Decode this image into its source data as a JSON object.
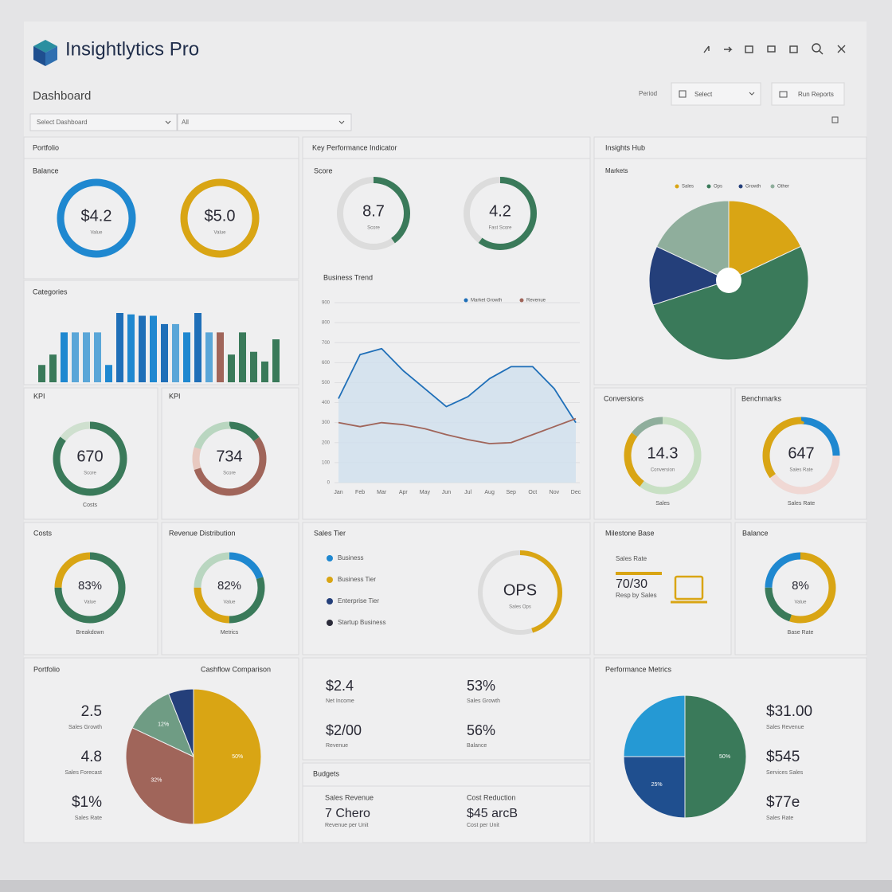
{
  "header": {
    "title": "Insightlytics Pro",
    "page": "Dashboard",
    "filter_label": "Period",
    "select": "Select",
    "button": "Run Reports",
    "dropdowns": [
      "Select Dashboard",
      "All"
    ]
  },
  "portfolio": {
    "title": "Portfolio",
    "subtitle": "Balance",
    "gauges": [
      {
        "value": "$4.2",
        "sub": "Value",
        "segments": [
          {
            "value": 100,
            "color": "#1f88d0"
          }
        ]
      },
      {
        "value": "$5.0",
        "sub": "Value",
        "segments": [
          {
            "value": 100,
            "color": "#d9a514"
          }
        ]
      }
    ]
  },
  "kpi": {
    "title": "Key Performance Indicator",
    "subtitle": "Score",
    "gauges": [
      {
        "value": "8.7",
        "sub": "Score",
        "segments": [
          {
            "value": 40,
            "color": "#3a7a5a"
          }
        ]
      },
      {
        "value": "4.2",
        "sub": "Fast Score",
        "segments": [
          {
            "value": 60,
            "color": "#3a7a5a"
          }
        ]
      }
    ]
  },
  "trend": {
    "title": "Business Trend",
    "ylim": [
      0,
      900
    ],
    "yticks": [
      0,
      100,
      200,
      300,
      400,
      500,
      600,
      700,
      800,
      900
    ],
    "categories": [
      "Jan",
      "Feb",
      "Mar",
      "Apr",
      "May",
      "Jun",
      "Jul",
      "Aug",
      "Sep",
      "Oct",
      "Nov",
      "Dec"
    ],
    "series": [
      {
        "name": "Market Growth",
        "color": "#1f6fb8",
        "values": [
          420,
          640,
          670,
          560,
          470,
          380,
          430,
          520,
          580,
          580,
          470,
          300
        ]
      },
      {
        "name": "Revenue",
        "color": "#a0655a",
        "values": [
          300,
          280,
          300,
          290,
          270,
          240,
          215,
          195,
          200,
          240,
          280,
          320
        ]
      }
    ]
  },
  "insights": {
    "title": "Insights Hub",
    "subtitle": "Markets",
    "slices": [
      {
        "name": "Sales",
        "value": 18,
        "color": "#d9a514"
      },
      {
        "name": "Ops",
        "value": 52,
        "color": "#3a7a5a"
      },
      {
        "name": "Growth",
        "value": 12,
        "color": "#243f7a"
      },
      {
        "name": "Other",
        "value": 18,
        "color": "#8fae9c"
      }
    ]
  },
  "categories": {
    "title": "Categories",
    "bars": [
      {
        "value": 25,
        "color": "#3a7a5a"
      },
      {
        "value": 40,
        "color": "#3a7a5a"
      },
      {
        "value": 72,
        "color": "#1f88d0"
      },
      {
        "value": 72,
        "color": "#5aa6d8"
      },
      {
        "value": 72,
        "color": "#5aa6d8"
      },
      {
        "value": 72,
        "color": "#5aa6d8"
      },
      {
        "value": 25,
        "color": "#1f88d0"
      },
      {
        "value": 100,
        "color": "#1f6fb8"
      },
      {
        "value": 98,
        "color": "#1f88d0"
      },
      {
        "value": 96,
        "color": "#1f6fb8"
      },
      {
        "value": 96,
        "color": "#1f88d0"
      },
      {
        "value": 84,
        "color": "#1f6fb8"
      },
      {
        "value": 84,
        "color": "#5aa6d8"
      },
      {
        "value": 72,
        "color": "#1f88d0"
      },
      {
        "value": 100,
        "color": "#1f6fb8"
      },
      {
        "value": 72,
        "color": "#5aa6d8"
      },
      {
        "value": 72,
        "color": "#a0655a"
      },
      {
        "value": 40,
        "color": "#3a7a5a"
      },
      {
        "value": 72,
        "color": "#3a7a5a"
      },
      {
        "value": 44,
        "color": "#3a7a5a"
      },
      {
        "value": 30,
        "color": "#3a7a5a"
      },
      {
        "value": 62,
        "color": "#3a7a5a"
      }
    ]
  },
  "kpi_left": {
    "title": "KPI",
    "value": "670",
    "sub": "Score",
    "caption": "Costs",
    "segments": [
      {
        "value": 85,
        "color": "#3a7a5a"
      },
      {
        "value": 15,
        "color": "#cfe0cf"
      }
    ]
  },
  "kpi_right": {
    "title": "KPI",
    "value": "734",
    "sub": "Score",
    "segments": [
      {
        "value": 15,
        "color": "#3a7a5a"
      },
      {
        "value": 55,
        "color": "#a0655a"
      },
      {
        "value": 10,
        "color": "#e8c9c0"
      },
      {
        "value": 20,
        "color": "#b9d6c0"
      }
    ]
  },
  "conversions": {
    "title": "Conversions",
    "value": "14.3",
    "sub": "Conversion",
    "caption": "Sales",
    "segments": [
      {
        "value": 60,
        "color": "#c8e0c4"
      },
      {
        "value": 25,
        "color": "#d9a514"
      },
      {
        "value": 15,
        "color": "#8fae9c"
      }
    ]
  },
  "benchmarks": {
    "title": "Benchmarks",
    "value": "647",
    "sub": "Sales Rate",
    "caption": "Sales Rate",
    "segments": [
      {
        "value": 25,
        "color": "#1f88d0"
      },
      {
        "value": 40,
        "color": "#f0d8d4"
      },
      {
        "value": 35,
        "color": "#d9a514"
      }
    ]
  },
  "costs": {
    "title": "Costs",
    "value": "83%",
    "sub": "Value",
    "caption": "Breakdown",
    "segments": [
      {
        "value": 75,
        "color": "#3a7a5a"
      },
      {
        "value": 25,
        "color": "#d9a514"
      }
    ]
  },
  "revenue": {
    "title": "Revenue Distribution",
    "value": "82%",
    "sub": "Value",
    "caption": "Metrics",
    "segments": [
      {
        "value": 20,
        "color": "#1f88d0"
      },
      {
        "value": 30,
        "color": "#3a7a5a"
      },
      {
        "value": 25,
        "color": "#d9a514"
      },
      {
        "value": 25,
        "color": "#b9d6c0"
      }
    ]
  },
  "sales_tier": {
    "title": "Sales Tier",
    "items": [
      {
        "label": "Business",
        "color": "#1f88d0"
      },
      {
        "label": "Business Tier",
        "color": "#d9a514"
      },
      {
        "label": "Enterprise Tier",
        "color": "#243f7a"
      },
      {
        "label": "Startup Business",
        "color": "#2b2b3a"
      }
    ],
    "gauge": {
      "value": "OPS",
      "sub": "Sales Ops",
      "segments": [
        {
          "value": 45,
          "color": "#d9a514"
        }
      ]
    }
  },
  "milestone": {
    "title": "Milestone Base",
    "label": "Sales Rate",
    "value": "70/30",
    "sub": "Resp by Sales"
  },
  "balance": {
    "title": "Balance",
    "value": "8%",
    "sub": "Value",
    "caption": "Base Rate",
    "segments": [
      {
        "value": 55,
        "color": "#d9a514"
      },
      {
        "value": 20,
        "color": "#3a7a5a"
      },
      {
        "value": 25,
        "color": "#1f88d0"
      }
    ]
  },
  "cashflow": {
    "title": "Portfolio",
    "chart_title": "Cashflow Comparison",
    "stats": [
      {
        "value": "2.5",
        "label": "Sales Growth"
      },
      {
        "value": "4.8",
        "label": "Sales Forecast"
      },
      {
        "value": "$1%",
        "label": "Sales Rate"
      }
    ],
    "slices": [
      {
        "value": 50,
        "color": "#d9a514",
        "label": "50%"
      },
      {
        "value": 32,
        "color": "#a0655a",
        "label": "32%"
      },
      {
        "value": 12,
        "color": "#6f9c84",
        "label": "12%"
      },
      {
        "value": 6,
        "color": "#243f7a"
      }
    ]
  },
  "income": {
    "stats": [
      {
        "value": "$2.4",
        "label": "Net Income"
      },
      {
        "value": "53%",
        "label": "Sales Growth"
      },
      {
        "value": "$2/00",
        "label": "Revenue"
      },
      {
        "value": "56%",
        "label": "Balance"
      }
    ]
  },
  "budgets": {
    "title": "Budgets",
    "stats": [
      {
        "label": "Sales Revenue",
        "value": "7 Chero",
        "sub": "Revenue per Unit"
      },
      {
        "label": "Cost Reduction",
        "value": "$45 arcB",
        "sub": "Cost per Unit"
      }
    ]
  },
  "performance": {
    "title": "Performance Metrics",
    "stats": [
      {
        "value": "$31.00",
        "label": "Sales Revenue"
      },
      {
        "value": "$545",
        "label": "Services Sales"
      },
      {
        "value": "$77e",
        "label": "Sales Rate"
      }
    ],
    "slices": [
      {
        "value": 50,
        "color": "#3a7a5a",
        "label": "50%"
      },
      {
        "value": 25,
        "color": "#1f4f8f",
        "label": "25%"
      },
      {
        "value": 25,
        "color": "#2599d4"
      }
    ]
  }
}
